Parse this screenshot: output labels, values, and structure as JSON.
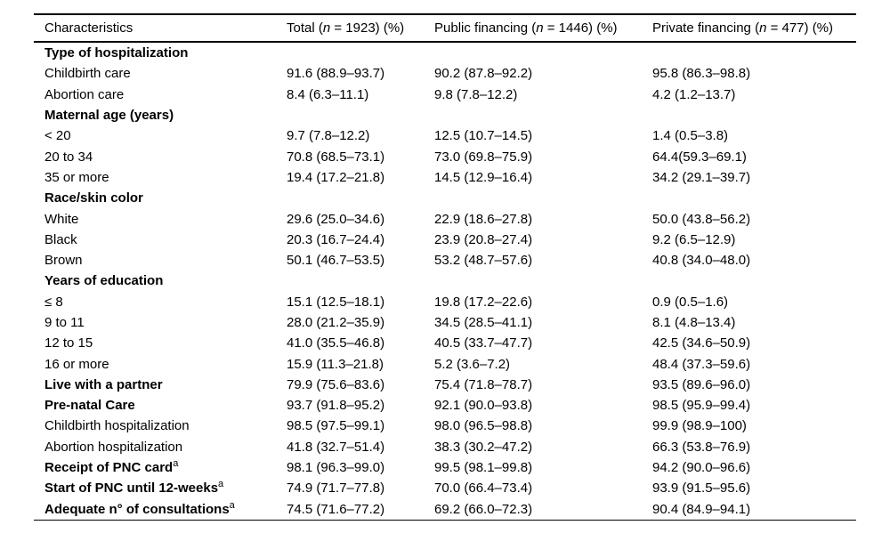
{
  "colors": {
    "background": "#ffffff",
    "text": "#000000",
    "rule": "#000000"
  },
  "table": {
    "columns": {
      "characteristics": "Characteristics",
      "total": {
        "pre": "Total (",
        "n": "n",
        "post": " = 1923) (%)"
      },
      "public": {
        "pre": "Public financing (",
        "n": "n",
        "post": " = 1446) (%)"
      },
      "private": {
        "pre": "Private financing (",
        "n": "n",
        "post": " = 477) (%)"
      }
    },
    "rows": [
      {
        "label": "Type of hospitalization",
        "bold": true,
        "values": [
          "",
          "",
          ""
        ]
      },
      {
        "label": "Childbirth care",
        "bold": false,
        "values": [
          "91.6 (88.9–93.7)",
          "90.2 (87.8–92.2)",
          "95.8 (86.3–98.8)"
        ]
      },
      {
        "label": "Abortion care",
        "bold": false,
        "values": [
          "8.4 (6.3–11.1)",
          "9.8 (7.8–12.2)",
          "4.2 (1.2–13.7)"
        ]
      },
      {
        "label": "Maternal age (years)",
        "bold": true,
        "values": [
          "",
          "",
          ""
        ]
      },
      {
        "label": "< 20",
        "bold": false,
        "values": [
          "9.7 (7.8–12.2)",
          "12.5 (10.7–14.5)",
          "1.4 (0.5–3.8)"
        ]
      },
      {
        "label": "20 to 34",
        "bold": false,
        "values": [
          "70.8 (68.5–73.1)",
          "73.0 (69.8–75.9)",
          "64.4(59.3–69.1)"
        ]
      },
      {
        "label": "35 or more",
        "bold": false,
        "values": [
          "19.4 (17.2–21.8)",
          "14.5 (12.9–16.4)",
          "34.2 (29.1–39.7)"
        ]
      },
      {
        "label": "Race/skin color",
        "bold": true,
        "values": [
          "",
          "",
          ""
        ]
      },
      {
        "label": "White",
        "bold": false,
        "values": [
          "29.6 (25.0–34.6)",
          "22.9 (18.6–27.8)",
          "50.0 (43.8–56.2)"
        ]
      },
      {
        "label": "Black",
        "bold": false,
        "values": [
          "20.3 (16.7–24.4)",
          "23.9 (20.8–27.4)",
          "9.2 (6.5–12.9)"
        ]
      },
      {
        "label": "Brown",
        "bold": false,
        "values": [
          "50.1 (46.7–53.5)",
          "53.2 (48.7–57.6)",
          "40.8 (34.0–48.0)"
        ]
      },
      {
        "label": "Years of education",
        "bold": true,
        "values": [
          "",
          "",
          ""
        ]
      },
      {
        "label": "≤ 8",
        "bold": false,
        "values": [
          "15.1 (12.5–18.1)",
          "19.8 (17.2–22.6)",
          "0.9 (0.5–1.6)"
        ]
      },
      {
        "label": "9 to 11",
        "bold": false,
        "values": [
          "28.0 (21.2–35.9)",
          "34.5 (28.5–41.1)",
          "8.1 (4.8–13.4)"
        ]
      },
      {
        "label": "12 to 15",
        "bold": false,
        "values": [
          "41.0 (35.5–46.8)",
          "40.5 (33.7–47.7)",
          "42.5 (34.6–50.9)"
        ]
      },
      {
        "label": "16 or more",
        "bold": false,
        "values": [
          "15.9 (11.3–21.8)",
          "5.2 (3.6–7.2)",
          "48.4 (37.3–59.6)"
        ]
      },
      {
        "label": "Live with a partner",
        "bold": true,
        "values": [
          "79.9 (75.6–83.6)",
          "75.4 (71.8–78.7)",
          "93.5 (89.6–96.0)"
        ]
      },
      {
        "label": "Pre-natal Care",
        "bold": true,
        "values": [
          "93.7 (91.8–95.2)",
          "92.1 (90.0–93.8)",
          "98.5 (95.9–99.4)"
        ]
      },
      {
        "label": "Childbirth hospitalization",
        "bold": false,
        "values": [
          "98.5 (97.5–99.1)",
          "98.0 (96.5–98.8)",
          "99.9 (98.9–100)"
        ]
      },
      {
        "label": "Abortion hospitalization",
        "bold": false,
        "values": [
          "41.8 (32.7–51.4)",
          "38.3 (30.2–47.2)",
          "66.3 (53.8–76.9)"
        ]
      },
      {
        "label": "Receipt of PNC card",
        "sup": "a",
        "bold": true,
        "values": [
          "98.1 (96.3–99.0)",
          "99.5 (98.1–99.8)",
          "94.2 (90.0–96.6)"
        ]
      },
      {
        "label": "Start of PNC until 12-weeks",
        "sup": "a",
        "bold": true,
        "values": [
          "74.9 (71.7–77.8)",
          "70.0 (66.4–73.4)",
          "93.9 (91.5–95.6)"
        ]
      },
      {
        "label": "Adequate n° of consultations",
        "sup": "a",
        "bold": true,
        "values": [
          "74.5 (71.6–77.2)",
          "69.2 (66.0–72.3)",
          "90.4 (84.9–94.1)"
        ]
      }
    ]
  }
}
